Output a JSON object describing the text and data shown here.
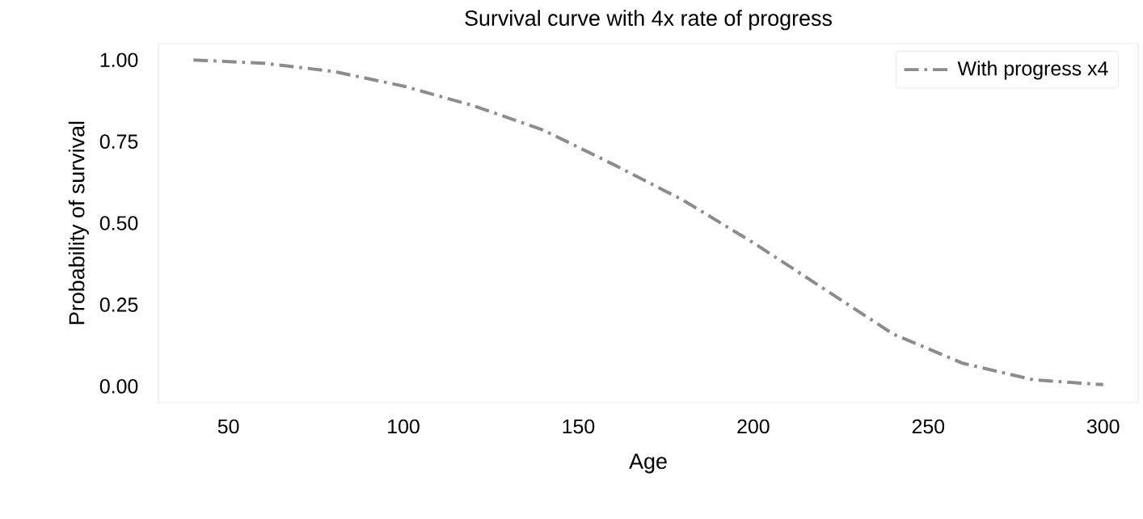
{
  "chart_data": {
    "type": "line",
    "title": "Survival curve with 4x rate of progress",
    "xlabel": "Age",
    "ylabel": "Probability of survival",
    "x": [
      40,
      60,
      80,
      100,
      120,
      140,
      160,
      180,
      200,
      220,
      240,
      260,
      280,
      300
    ],
    "series": [
      {
        "name": "With progress x4",
        "color": "#8c8c8c",
        "line_style": "dashdot",
        "values": [
          1.0,
          0.99,
          0.965,
          0.92,
          0.86,
          0.785,
          0.68,
          0.57,
          0.44,
          0.3,
          0.16,
          0.07,
          0.02,
          0.005
        ]
      }
    ],
    "xlim": [
      30,
      310
    ],
    "ylim": [
      -0.05,
      1.05
    ],
    "xticks": [
      50,
      100,
      150,
      200,
      250,
      300
    ],
    "yticks": [
      {
        "value": 0,
        "label": "0.00"
      },
      {
        "value": 0.25,
        "label": "0.25"
      },
      {
        "value": 0.5,
        "label": "0.50"
      },
      {
        "value": 0.75,
        "label": "0.75"
      },
      {
        "value": 1,
        "label": "1.00"
      }
    ],
    "grid": false,
    "legend": "top right",
    "marker": "none"
  }
}
